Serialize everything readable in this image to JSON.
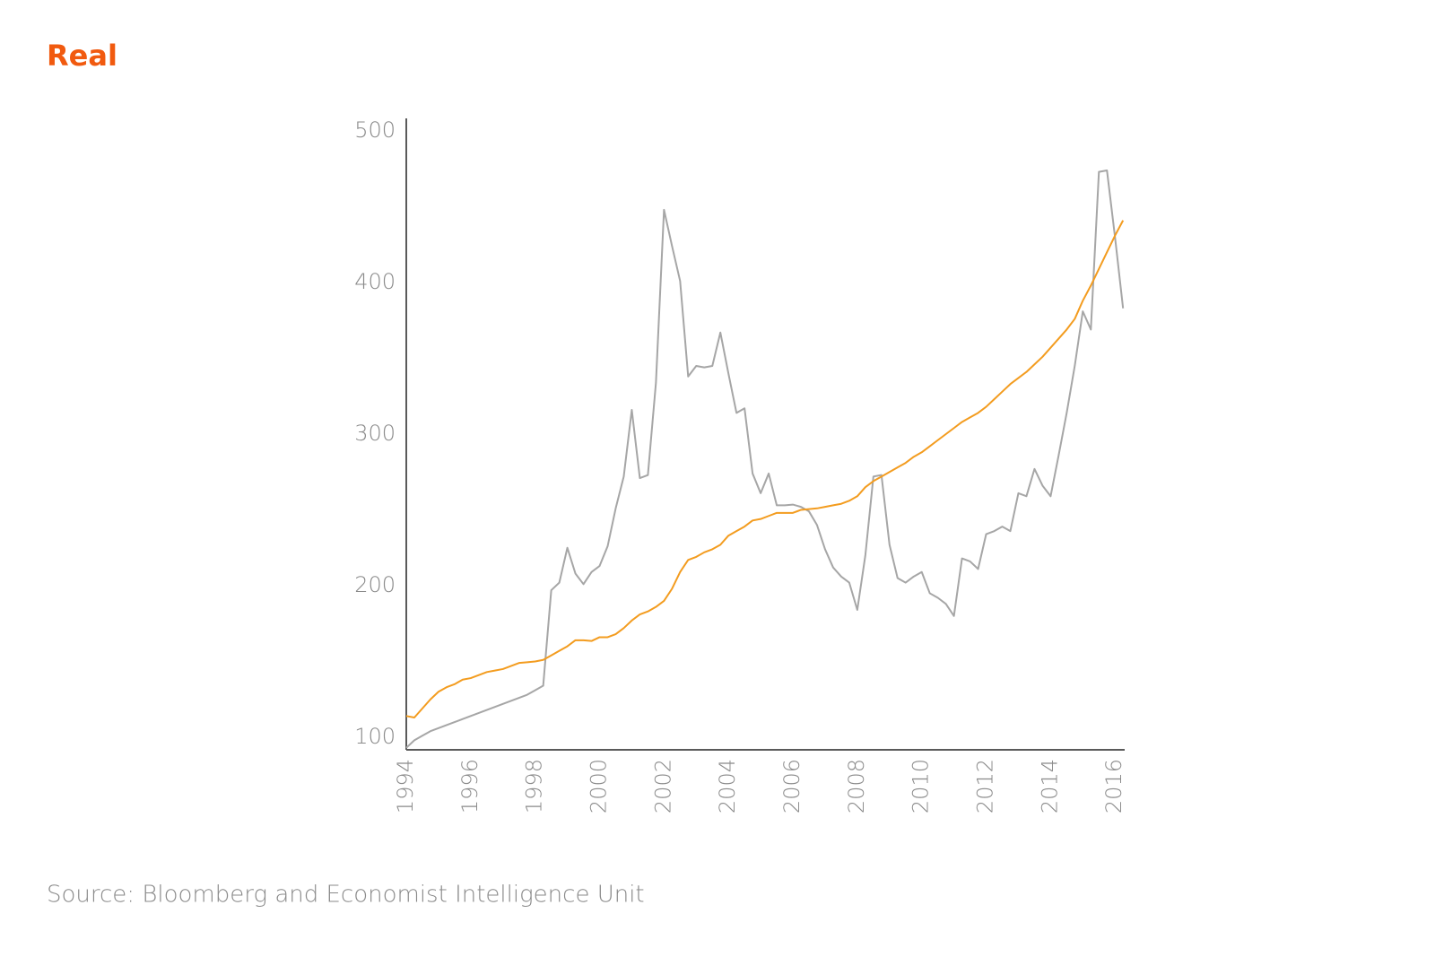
{
  "chart_data": {
    "type": "line",
    "title": "Real",
    "source": "Source: Bloomberg and Economist Intelligence Unit",
    "x": [
      1994,
      1994.25,
      1994.5,
      1994.75,
      1995,
      1995.25,
      1995.5,
      1995.75,
      1996,
      1996.25,
      1996.5,
      1996.75,
      1997,
      1997.25,
      1997.5,
      1997.75,
      1998,
      1998.25,
      1998.5,
      1998.75,
      1999,
      1999.25,
      1999.5,
      1999.75,
      2000,
      2000.25,
      2000.5,
      2000.75,
      2001,
      2001.25,
      2001.5,
      2001.75,
      2002,
      2002.25,
      2002.5,
      2002.75,
      2003,
      2003.25,
      2003.5,
      2003.75,
      2004,
      2004.25,
      2004.5,
      2004.75,
      2005,
      2005.25,
      2005.5,
      2005.75,
      2006,
      2006.25,
      2006.5,
      2006.75,
      2007,
      2007.25,
      2007.5,
      2007.75,
      2008,
      2008.25,
      2008.5,
      2008.75,
      2009,
      2009.25,
      2009.5,
      2009.75,
      2010,
      2010.25,
      2010.5,
      2010.75,
      2011,
      2011.25,
      2011.5,
      2011.75,
      2012,
      2012.25,
      2012.5,
      2012.75,
      2013,
      2013.25,
      2013.5,
      2013.75,
      2014,
      2014.25,
      2014.5,
      2014.75,
      2015,
      2015.25,
      2015.5,
      2015.75,
      2016,
      2016.25
    ],
    "series": [
      {
        "color": "#a6a6a6",
        "values": [
          93,
          98,
          101,
          104,
          106,
          108,
          110,
          112,
          114,
          116,
          118,
          120,
          122,
          124,
          126,
          128,
          131,
          134,
          197,
          202,
          225,
          208,
          201,
          209,
          213,
          226,
          251,
          272,
          316,
          271,
          273,
          334,
          448,
          424,
          401,
          338,
          345,
          344,
          345,
          367,
          340,
          314,
          317,
          274,
          261,
          274,
          253,
          253,
          253.5,
          252,
          249,
          240,
          224,
          212,
          206,
          202,
          184,
          220,
          272,
          273,
          227,
          205,
          202,
          206,
          209,
          195,
          192,
          188,
          180,
          218,
          216,
          211,
          234,
          236,
          239,
          236,
          261,
          259,
          277,
          266,
          259,
          286,
          314,
          345,
          381,
          369,
          473,
          474,
          430,
          383
        ]
      },
      {
        "color": "#f39c1f",
        "values": [
          114,
          113,
          119,
          125,
          130,
          133,
          135,
          138,
          139,
          141,
          143,
          144,
          145,
          147,
          149,
          149.5,
          150,
          151,
          154,
          157,
          160,
          164,
          164,
          163.5,
          166,
          166,
          168,
          172,
          177,
          181,
          183,
          186,
          190,
          198,
          209,
          217,
          219,
          222,
          224,
          227,
          233,
          236,
          239,
          243,
          244,
          246,
          248,
          248,
          248,
          250,
          250.5,
          251,
          252,
          253,
          254,
          256,
          259,
          265,
          269,
          272,
          275,
          278,
          281,
          285,
          288,
          292,
          296,
          300,
          304,
          308,
          311,
          314,
          318,
          323,
          328,
          333,
          337,
          341,
          346,
          351,
          357,
          363,
          369,
          376,
          388,
          398,
          409,
          420,
          431,
          441
        ]
      }
    ],
    "xlim": [
      1994,
      2016.3
    ],
    "xticks": [
      1994,
      1996,
      1998,
      2000,
      2002,
      2004,
      2006,
      2008,
      2010,
      2012,
      2014,
      2016
    ],
    "ylim": [
      91.7,
      508.3
    ],
    "yticks": [
      100,
      200,
      300,
      400,
      500
    ],
    "grid": false
  }
}
